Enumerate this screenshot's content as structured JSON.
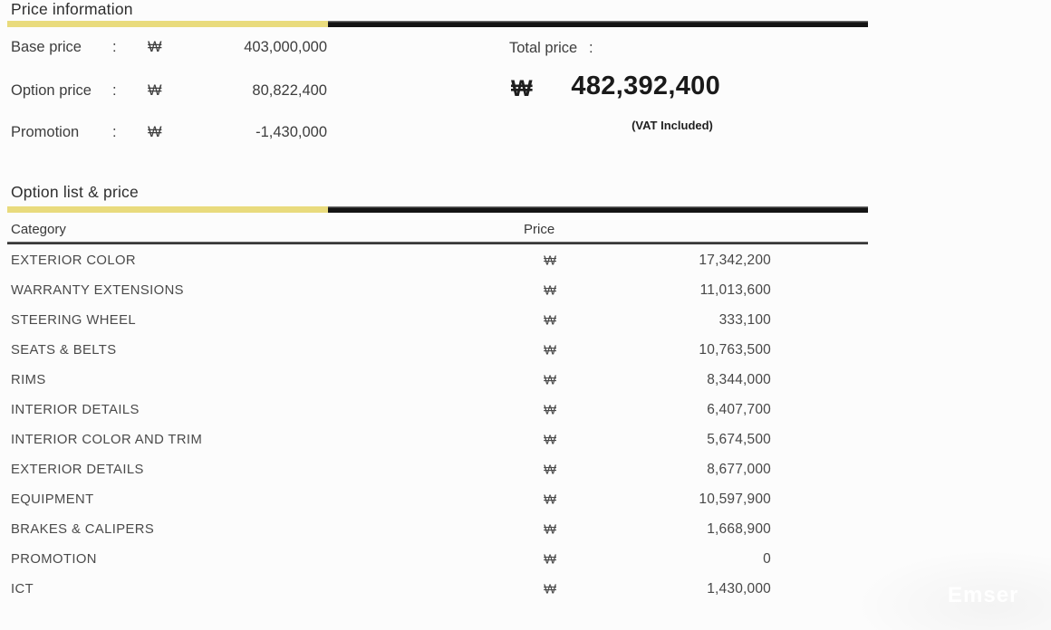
{
  "colors": {
    "accent_yellow": "#E9DB7D",
    "accent_black": "#141414",
    "text_dark": "#3d3d3d",
    "text_table": "#4a4a4a",
    "total_text": "#1a1a1a",
    "background": "#fcfcfc"
  },
  "price_information": {
    "title": "Price information",
    "colon": ":",
    "currency": "₩",
    "rows": [
      {
        "label": "Base price",
        "value": "403,000,000"
      },
      {
        "label": "Option price",
        "value": "80,822,400"
      },
      {
        "label": "Promotion",
        "value": "-1,430,000"
      }
    ],
    "total": {
      "label": "Total price",
      "colon": ":",
      "currency": "₩",
      "value": "482,392,400",
      "note": "(VAT Included)"
    }
  },
  "option_list": {
    "title": "Option list & price",
    "columns": {
      "category": "Category",
      "price": "Price"
    },
    "currency": "₩",
    "rows": [
      {
        "category": "EXTERIOR COLOR",
        "price": "17,342,200"
      },
      {
        "category": "WARRANTY EXTENSIONS",
        "price": "11,013,600"
      },
      {
        "category": "STEERING WHEEL",
        "price": "333,100"
      },
      {
        "category": "SEATS & BELTS",
        "price": "10,763,500"
      },
      {
        "category": "RIMS",
        "price": "8,344,000"
      },
      {
        "category": "INTERIOR DETAILS",
        "price": "6,407,700"
      },
      {
        "category": "INTERIOR COLOR AND TRIM",
        "price": "5,674,500"
      },
      {
        "category": "EXTERIOR DETAILS",
        "price": "8,677,000"
      },
      {
        "category": "EQUIPMENT",
        "price": "10,597,900"
      },
      {
        "category": "BRAKES & CALIPERS",
        "price": "1,668,900"
      },
      {
        "category": "PROMOTION",
        "price": "0"
      },
      {
        "category": "ICT",
        "price": "1,430,000"
      }
    ]
  },
  "watermark": {
    "text": "Emser"
  }
}
